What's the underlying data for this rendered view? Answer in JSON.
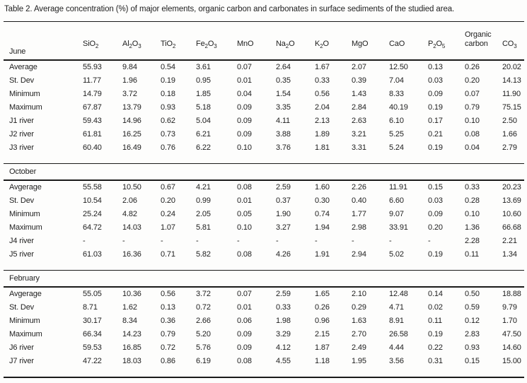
{
  "caption": "Table 2. Average concentration (%) of major elements, organic carbon and carbonates in surface sediments of the studied area.",
  "columns": [
    "SiO₂",
    "Al₂O₃",
    "TiO₂",
    "Fe₂O₃",
    "MnO",
    "Na₂O",
    "K₂O",
    "MgO",
    "CaO",
    "P₂O₅",
    "Organic carbon",
    "CO₃"
  ],
  "sections": [
    {
      "label": "June",
      "rows": [
        {
          "label": "Average",
          "values": [
            "55.93",
            "9.84",
            "0.54",
            "3.61",
            "0.07",
            "2.64",
            "1.67",
            "2.07",
            "12.50",
            "0.13",
            "0.26",
            "20.02"
          ]
        },
        {
          "label": "St. Dev",
          "values": [
            "11.77",
            "1.96",
            "0.19",
            "0.95",
            "0.01",
            "0.35",
            "0.33",
            "0.39",
            "7.04",
            "0.03",
            "0.20",
            "14.13"
          ]
        },
        {
          "label": "Minimum",
          "values": [
            "14.79",
            "3.72",
            "0.18",
            "1.85",
            "0.04",
            "1.54",
            "0.56",
            "1.43",
            "8.33",
            "0.09",
            "0.07",
            "11.90"
          ]
        },
        {
          "label": "Maximum",
          "values": [
            "67.87",
            "13.79",
            "0.93",
            "5.18",
            "0.09",
            "3.35",
            "2.04",
            "2.84",
            "40.19",
            "0.19",
            "0.79",
            "75.15"
          ]
        },
        {
          "label": "J1 river",
          "values": [
            "59.43",
            "14.96",
            "0.62",
            "5.04",
            "0.09",
            "4.11",
            "2.13",
            "2.63",
            "6.10",
            "0.17",
            "0.10",
            "2.50"
          ]
        },
        {
          "label": "J2 river",
          "values": [
            "61.81",
            "16.25",
            "0.73",
            "6.21",
            "0.09",
            "3.88",
            "1.89",
            "3.21",
            "5.25",
            "0.21",
            "0.08",
            "1.66"
          ]
        },
        {
          "label": "J3 river",
          "values": [
            "60.40",
            "16.49",
            "0.76",
            "6.22",
            "0.10",
            "3.76",
            "1.81",
            "3.31",
            "5.24",
            "0.19",
            "0.04",
            "2.79"
          ]
        }
      ]
    },
    {
      "label": "October",
      "rows": [
        {
          "label": "Avgerage",
          "values": [
            "55.58",
            "10.50",
            "0.67",
            "4.21",
            "0.08",
            "2.59",
            "1.60",
            "2.26",
            "11.91",
            "0.15",
            "0.33",
            "20.23"
          ]
        },
        {
          "label": "St. Dev",
          "values": [
            "10.54",
            "2.06",
            "0.20",
            "0.99",
            "0.01",
            "0.37",
            "0.30",
            "0.40",
            "6.60",
            "0.03",
            "0.28",
            "13.69"
          ]
        },
        {
          "label": "Minimum",
          "values": [
            "25.24",
            "4.82",
            "0.24",
            "2.05",
            "0.05",
            "1.90",
            "0.74",
            "1.77",
            "9.07",
            "0.09",
            "0.10",
            "10.60"
          ]
        },
        {
          "label": "Maximum",
          "values": [
            "64.72",
            "14.03",
            "1.07",
            "5.81",
            "0.10",
            "3.27",
            "1.94",
            "2.98",
            "33.91",
            "0.20",
            "1.36",
            "66.68"
          ]
        },
        {
          "label": "J4 river",
          "values": [
            "-",
            "-",
            "-",
            "-",
            "-",
            "-",
            "-",
            "-",
            "-",
            "-",
            "2.28",
            "2.21"
          ]
        },
        {
          "label": "J5 river",
          "values": [
            "61.03",
            "16.36",
            "0.71",
            "5.82",
            "0.08",
            "4.26",
            "1.91",
            "2.94",
            "5.02",
            "0.19",
            "0.11",
            "1.34"
          ]
        }
      ]
    },
    {
      "label": "February",
      "rows": [
        {
          "label": "Avgerage",
          "values": [
            "55.05",
            "10.36",
            "0.56",
            "3.72",
            "0.07",
            "2.59",
            "1.65",
            "2.10",
            "12.48",
            "0.14",
            "0.50",
            "18.88"
          ]
        },
        {
          "label": "St. Dev",
          "values": [
            "8.71",
            "1.62",
            "0.13",
            "0.72",
            "0.01",
            "0.33",
            "0.26",
            "0.29",
            "4.71",
            "0.02",
            "0.59",
            "9.79"
          ]
        },
        {
          "label": "Minimum",
          "values": [
            "30.17",
            "8.34",
            "0.36",
            "2.66",
            "0.06",
            "1.98",
            "0.96",
            "1.63",
            "8.91",
            "0.11",
            "0.12",
            "1.70"
          ]
        },
        {
          "label": "Maximum",
          "values": [
            "66.34",
            "14.23",
            "0.79",
            "5.20",
            "0.09",
            "3.29",
            "2.15",
            "2.70",
            "26.58",
            "0.19",
            "2.83",
            "47.50"
          ]
        },
        {
          "label": "J6 river",
          "values": [
            "59.53",
            "16.85",
            "0.72",
            "5.76",
            "0.09",
            "4.12",
            "1.87",
            "2.49",
            "4.44",
            "0.22",
            "0.93",
            "14.60"
          ]
        },
        {
          "label": "J7 river",
          "values": [
            "47.22",
            "18.03",
            "0.86",
            "6.19",
            "0.08",
            "4.55",
            "1.18",
            "1.95",
            "3.56",
            "0.31",
            "0.15",
            "15.00"
          ]
        }
      ]
    }
  ]
}
